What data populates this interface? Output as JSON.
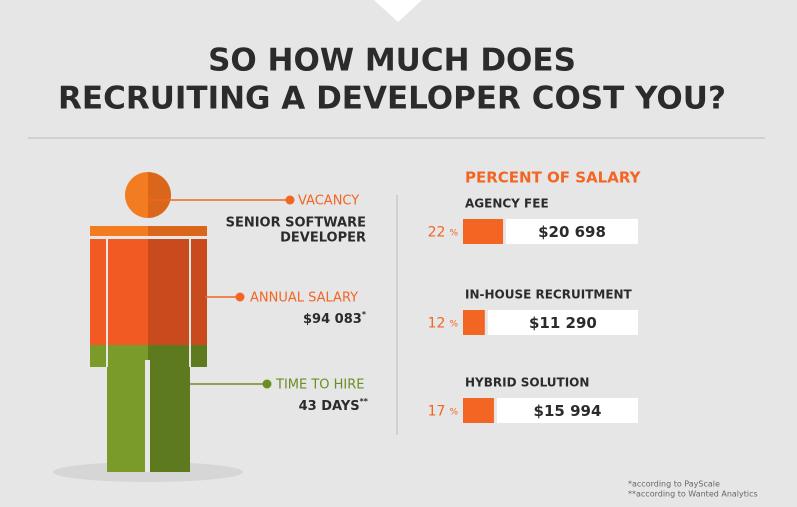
{
  "title": [
    "SO HOW MUCH DOES",
    "RECRUITING A DEVELOPER COST YOU?"
  ],
  "profile": {
    "vacancy": {
      "label": "VACANCY",
      "value": [
        "SENIOR SOFTWARE",
        "DEVELOPER"
      ]
    },
    "salary": {
      "label": "ANNUAL SALARY",
      "value": "$94 083",
      "note": "*"
    },
    "time": {
      "label": "TIME TO HIRE",
      "value": "43 DAYS",
      "note": "**"
    }
  },
  "percent_of_salary": {
    "heading": "PERCENT OF SALARY",
    "unit": "%",
    "items": [
      {
        "name": "AGENCY FEE",
        "percent": 22,
        "amount": "$20 698"
      },
      {
        "name": "IN-HOUSE RECRUITMENT",
        "percent": 12,
        "amount": "$11 290"
      },
      {
        "name": "HYBRID SOLUTION",
        "percent": 17,
        "amount": "$15 994"
      }
    ]
  },
  "footnotes": [
    "*according to PayScale",
    "**according to Wanted Analytics"
  ]
}
